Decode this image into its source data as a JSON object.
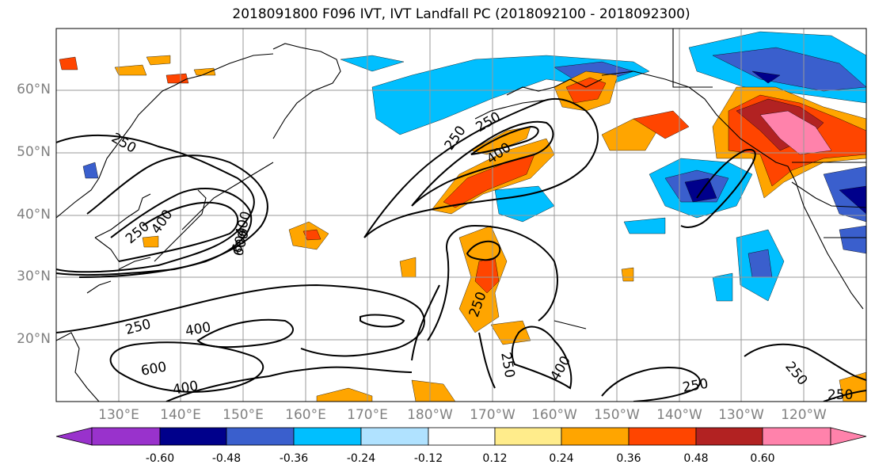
{
  "title": "2018091800 F096 IVT, IVT Landfall PC (2018092100 - 2018092300)",
  "lat_ticks": [
    "60°N",
    "50°N",
    "40°N",
    "30°N",
    "20°N"
  ],
  "lon_ticks": [
    "130°E",
    "140°E",
    "150°E",
    "160°E",
    "170°E",
    "180°W",
    "170°W",
    "160°W",
    "150°W",
    "140°W",
    "130°W",
    "120°W"
  ],
  "colorbar": {
    "colors": [
      "#9932cc",
      "#00008b",
      "#3a5fcd",
      "#00bfff",
      "#b0e2ff",
      "#ffffff",
      "#ffec8b",
      "#ffa500",
      "#ff4500",
      "#b22222",
      "#ff82ab"
    ],
    "tick_labels": [
      "-0.60",
      "-0.48",
      "-0.36",
      "-0.24",
      "-0.12",
      "0.12",
      "0.24",
      "0.36",
      "0.48",
      "0.60"
    ]
  },
  "contour_labels": [
    {
      "text": "250"
    },
    {
      "text": "250"
    },
    {
      "text": "400"
    },
    {
      "text": "600"
    },
    {
      "text": "400"
    },
    {
      "text": "600"
    },
    {
      "text": "250"
    },
    {
      "text": "400"
    },
    {
      "text": "600"
    },
    {
      "text": "400"
    },
    {
      "text": "250"
    },
    {
      "text": "250"
    },
    {
      "text": "400"
    },
    {
      "text": "250"
    },
    {
      "text": "250"
    },
    {
      "text": "250"
    },
    {
      "text": "250"
    },
    {
      "text": "400"
    }
  ]
}
